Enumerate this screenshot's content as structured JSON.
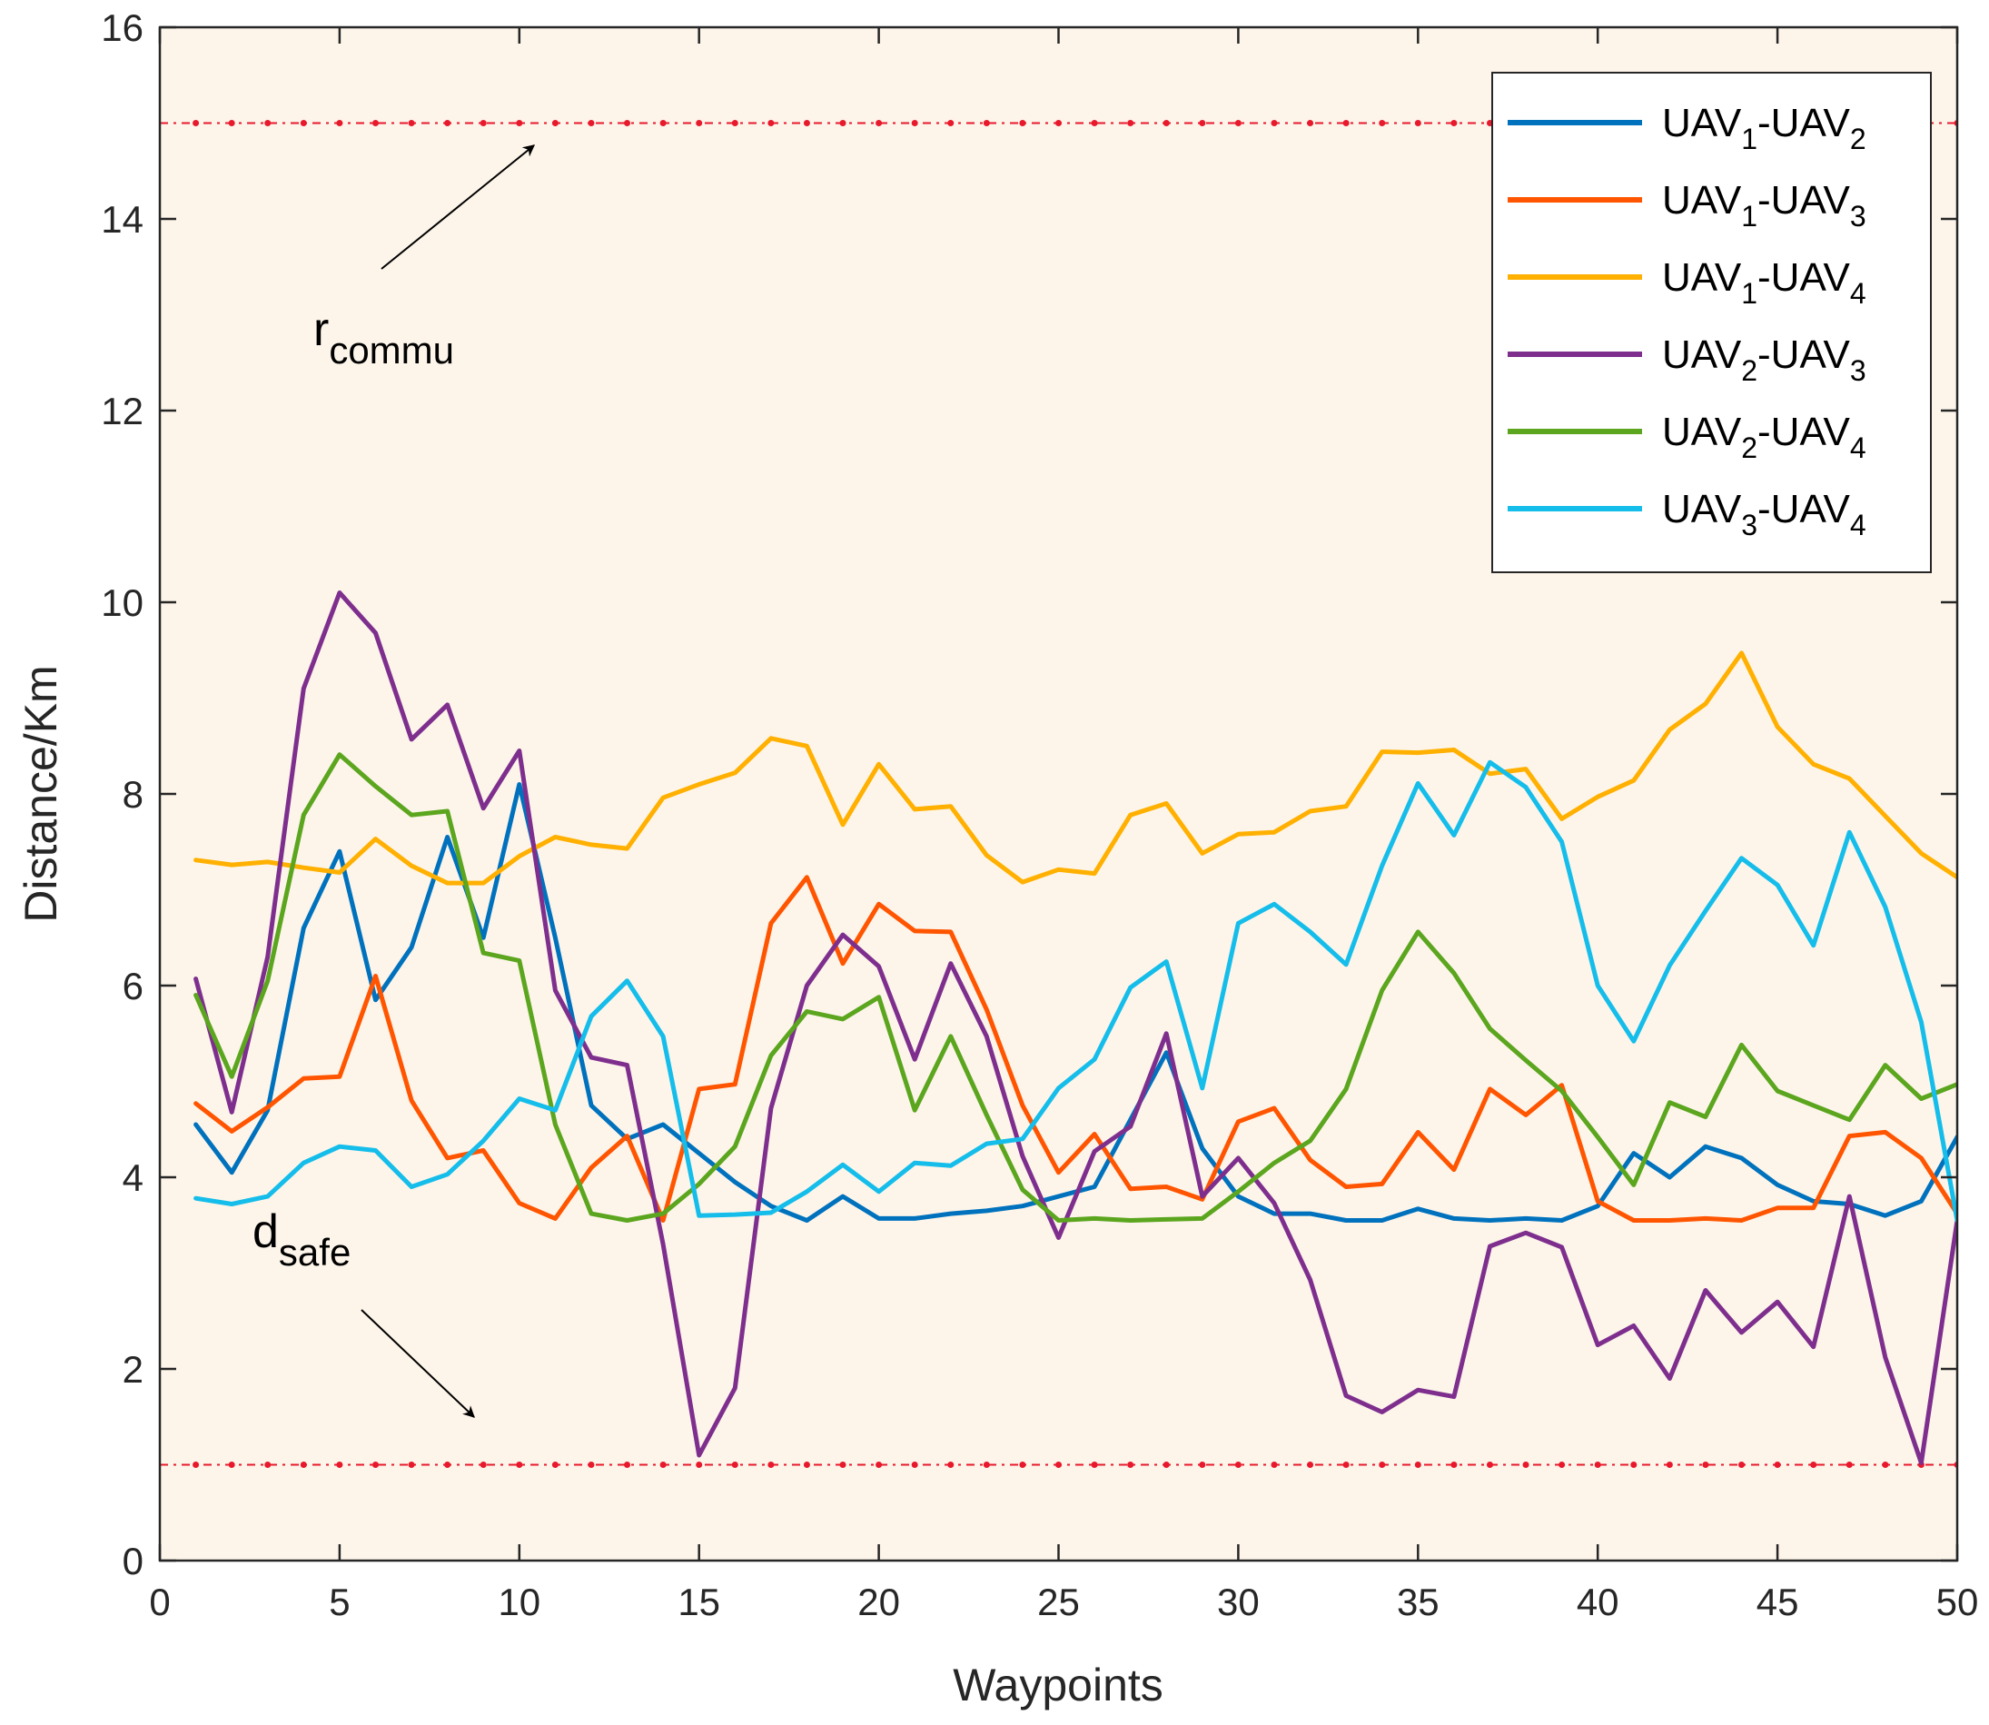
{
  "chart_data": {
    "type": "line",
    "xlabel": "Waypoints",
    "ylabel": "Distance/Km",
    "xlim": [
      0,
      50
    ],
    "ylim": [
      0,
      16
    ],
    "xticks": [
      0,
      5,
      10,
      15,
      20,
      25,
      30,
      35,
      40,
      45,
      50
    ],
    "yticks": [
      0,
      2,
      4,
      6,
      8,
      10,
      12,
      14,
      16
    ],
    "grid": false,
    "legend_position": "top-right",
    "background_color": "#fdf5ea",
    "x": [
      1,
      2,
      3,
      4,
      5,
      6,
      7,
      8,
      9,
      10,
      11,
      12,
      13,
      14,
      15,
      16,
      17,
      18,
      19,
      20,
      21,
      22,
      23,
      24,
      25,
      26,
      27,
      28,
      29,
      30,
      31,
      32,
      33,
      34,
      35,
      36,
      37,
      38,
      39,
      40,
      41,
      42,
      43,
      44,
      45,
      46,
      47,
      48,
      49,
      50
    ],
    "series": [
      {
        "name": "UAV1-UAV2",
        "legend": {
          "base1": "UAV",
          "sub1": "1",
          "sep": "-",
          "base2": "UAV",
          "sub2": "2"
        },
        "color": "#0072bd",
        "values": [
          4.55,
          4.05,
          4.7,
          6.6,
          7.4,
          5.85,
          6.4,
          7.55,
          6.5,
          8.1,
          6.5,
          4.75,
          4.4,
          4.55,
          4.25,
          3.95,
          3.7,
          3.55,
          3.8,
          3.57,
          3.57,
          3.62,
          3.65,
          3.7,
          3.8,
          3.9,
          4.6,
          5.3,
          4.3,
          3.8,
          3.62,
          3.62,
          3.55,
          3.55,
          3.67,
          3.57,
          3.55,
          3.57,
          3.55,
          3.7,
          4.25,
          4.0,
          4.32,
          4.2,
          3.92,
          3.75,
          3.72,
          3.6,
          3.75,
          4.42
        ]
      },
      {
        "name": "UAV1-UAV3",
        "legend": {
          "base1": "UAV",
          "sub1": "1",
          "sep": "-",
          "base2": "UAV",
          "sub2": "3"
        },
        "color": "#ff5500",
        "values": [
          4.77,
          4.48,
          4.73,
          5.03,
          5.05,
          6.1,
          4.8,
          4.2,
          4.28,
          3.73,
          3.57,
          4.1,
          4.43,
          3.55,
          4.92,
          4.97,
          6.65,
          7.13,
          6.23,
          6.85,
          6.57,
          6.56,
          5.75,
          4.75,
          4.05,
          4.45,
          3.88,
          3.9,
          3.77,
          4.58,
          4.72,
          4.18,
          3.9,
          3.93,
          4.47,
          4.08,
          4.92,
          4.65,
          4.96,
          3.75,
          3.55,
          3.55,
          3.57,
          3.55,
          3.68,
          3.68,
          4.43,
          4.47,
          4.2,
          3.62
        ]
      },
      {
        "name": "UAV1-UAV4",
        "legend": {
          "base1": "UAV",
          "sub1": "1",
          "sep": "-",
          "base2": "UAV",
          "sub2": "4"
        },
        "color": "#ffb000",
        "values": [
          7.31,
          7.26,
          7.29,
          7.23,
          7.18,
          7.53,
          7.25,
          7.07,
          7.07,
          7.35,
          7.55,
          7.47,
          7.43,
          7.96,
          8.1,
          8.22,
          8.58,
          8.5,
          7.68,
          8.31,
          7.84,
          7.87,
          7.36,
          7.08,
          7.21,
          7.17,
          7.78,
          7.9,
          7.38,
          7.58,
          7.6,
          7.82,
          7.87,
          8.44,
          8.43,
          8.46,
          8.21,
          8.26,
          7.74,
          7.97,
          8.14,
          8.67,
          8.94,
          9.47,
          8.7,
          8.31,
          8.16,
          7.77,
          7.38,
          7.13
        ]
      },
      {
        "name": "UAV2-UAV3",
        "legend": {
          "base1": "UAV",
          "sub1": "2",
          "sep": "-",
          "base2": "UAV",
          "sub2": "3"
        },
        "color": "#7e2f8e",
        "values": [
          6.07,
          4.68,
          6.3,
          9.1,
          10.1,
          9.68,
          8.57,
          8.93,
          7.85,
          8.45,
          5.95,
          5.25,
          5.17,
          3.3,
          1.1,
          1.8,
          4.72,
          6.0,
          6.53,
          6.2,
          5.23,
          6.23,
          5.47,
          4.22,
          3.37,
          4.27,
          4.53,
          5.5,
          3.8,
          4.2,
          3.73,
          2.93,
          1.72,
          1.55,
          1.78,
          1.71,
          3.28,
          3.42,
          3.27,
          2.25,
          2.45,
          1.9,
          2.82,
          2.38,
          2.7,
          2.23,
          3.8,
          2.12,
          1.02,
          3.55
        ]
      },
      {
        "name": "UAV2-UAV4",
        "legend": {
          "base1": "UAV",
          "sub1": "2",
          "sep": "-",
          "base2": "UAV",
          "sub2": "4"
        },
        "color": "#5ba61e",
        "values": [
          5.9,
          5.05,
          6.05,
          7.78,
          8.41,
          8.08,
          7.78,
          7.82,
          6.34,
          6.26,
          4.55,
          3.62,
          3.55,
          3.62,
          3.93,
          4.32,
          5.27,
          5.73,
          5.65,
          5.88,
          4.7,
          5.47,
          4.65,
          3.87,
          3.55,
          3.57,
          3.55,
          3.56,
          3.57,
          3.85,
          4.15,
          4.38,
          4.92,
          5.95,
          6.56,
          6.13,
          5.55,
          5.22,
          4.9,
          4.42,
          3.92,
          4.78,
          4.63,
          5.38,
          4.9,
          4.75,
          4.6,
          5.17,
          4.82,
          4.97
        ]
      },
      {
        "name": "UAV3-UAV4",
        "legend": {
          "base1": "UAV",
          "sub1": "3",
          "sep": "-",
          "base2": "UAV",
          "sub2": "4"
        },
        "color": "#15bdea",
        "values": [
          3.78,
          3.72,
          3.8,
          4.15,
          4.32,
          4.28,
          3.9,
          4.03,
          4.38,
          4.82,
          4.7,
          5.68,
          6.05,
          5.47,
          3.6,
          3.61,
          3.63,
          3.85,
          4.13,
          3.85,
          4.15,
          4.12,
          4.35,
          4.4,
          4.93,
          5.23,
          5.98,
          6.25,
          4.93,
          6.65,
          6.85,
          6.56,
          6.22,
          7.25,
          8.11,
          7.57,
          8.33,
          8.07,
          7.5,
          6.0,
          5.42,
          6.21,
          6.78,
          7.33,
          7.05,
          6.42,
          7.6,
          6.82,
          5.62,
          3.55
        ]
      }
    ],
    "reference_lines": [
      {
        "name": "r-commu",
        "y": 15,
        "color": "#e8192c"
      },
      {
        "name": "d-safe",
        "y": 1,
        "color": "#e8192c"
      }
    ],
    "annotations": [
      {
        "name": "r-commu",
        "base": "r",
        "sub": "commu"
      },
      {
        "name": "d-safe",
        "base": "d",
        "sub": "safe"
      }
    ]
  }
}
